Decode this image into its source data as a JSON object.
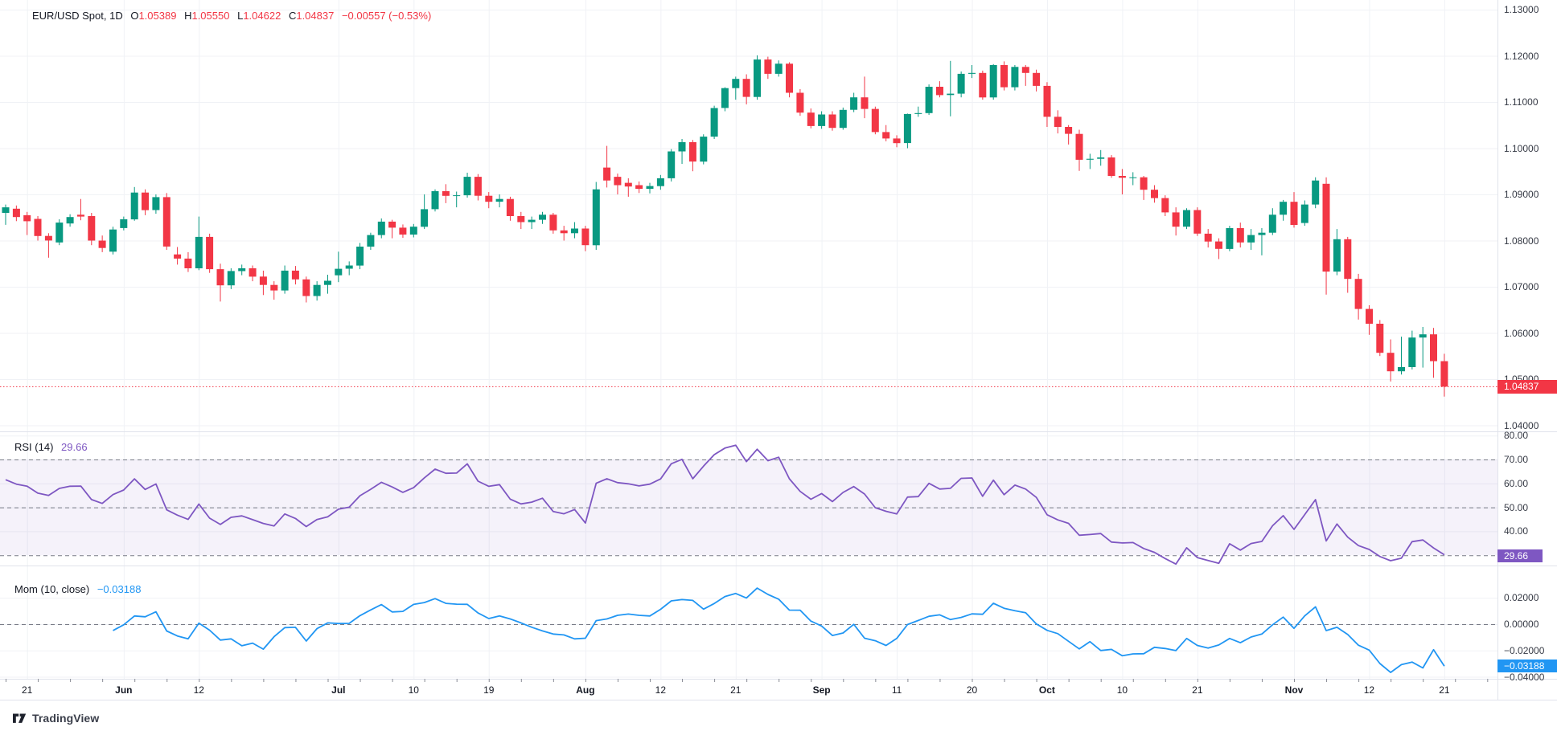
{
  "legend": {
    "symbol": "EUR/USD Spot, 1D",
    "o_key": "O",
    "o_val": "1.05389",
    "h_key": "H",
    "h_val": "1.05550",
    "l_key": "L",
    "l_val": "1.04622",
    "c_key": "C",
    "c_val": "1.04837",
    "change": "−0.00557 (−0.53%)"
  },
  "rsi_legend": {
    "name": "RSI",
    "params": "(14)",
    "value": "29.66"
  },
  "mom_legend": {
    "name": "Mom",
    "params": "(10, close)",
    "value": "−0.03188"
  },
  "badges": {
    "price": "1.04837",
    "rsi": "29.66",
    "mom": "−0.03188"
  },
  "logo": {
    "brand": "TradingView"
  },
  "colors": {
    "up": "#089981",
    "down": "#f23645",
    "rsi": "#7e57c2",
    "rsi_band_fill": "#7e57c2",
    "momentum": "#2196f3",
    "grid": "#f0f2f6",
    "separator": "#e0e3eb",
    "level_dash": "#787b86",
    "axis_text": "#363a45",
    "tick": "#8a8d96"
  },
  "chart_data": {
    "type": "candlestick",
    "title": "EUR/USD Spot, 1D",
    "symbol": "EUR/USD Spot",
    "interval": "1D",
    "last_price": 1.04837,
    "price_axis_labels": [
      {
        "label": "1.13000",
        "value": 1.13
      },
      {
        "label": "1.12000",
        "value": 1.12
      },
      {
        "label": "1.11000",
        "value": 1.11
      },
      {
        "label": "1.10000",
        "value": 1.1
      },
      {
        "label": "1.09000",
        "value": 1.09
      },
      {
        "label": "1.08000",
        "value": 1.08
      },
      {
        "label": "1.07000",
        "value": 1.07
      },
      {
        "label": "1.06000",
        "value": 1.06
      },
      {
        "label": "1.05000",
        "value": 1.05
      },
      {
        "label": "1.04000",
        "value": 1.04
      }
    ],
    "time_axis_labels": [
      {
        "label": "21",
        "index": 2
      },
      {
        "label": "Jun",
        "index": 11,
        "month": true
      },
      {
        "label": "12",
        "index": 18
      },
      {
        "label": "Jul",
        "index": 31,
        "month": true
      },
      {
        "label": "10",
        "index": 38
      },
      {
        "label": "19",
        "index": 45
      },
      {
        "label": "Aug",
        "index": 54,
        "month": true
      },
      {
        "label": "12",
        "index": 61
      },
      {
        "label": "21",
        "index": 68
      },
      {
        "label": "Sep",
        "index": 76,
        "month": true
      },
      {
        "label": "11",
        "index": 83
      },
      {
        "label": "20",
        "index": 90
      },
      {
        "label": "Oct",
        "index": 97,
        "month": true
      },
      {
        "label": "10",
        "index": 104
      },
      {
        "label": "21",
        "index": 111
      },
      {
        "label": "Nov",
        "index": 120,
        "month": true
      },
      {
        "label": "12",
        "index": 127
      },
      {
        "label": "21",
        "index": 134
      }
    ],
    "candles": [
      [
        1.086,
        1.0878,
        1.0834,
        1.0872
      ],
      [
        1.0869,
        1.0876,
        1.0842,
        1.0851
      ],
      [
        1.0855,
        1.0862,
        1.0812,
        1.0842
      ],
      [
        1.0847,
        1.0853,
        1.08,
        1.081
      ],
      [
        1.081,
        1.0816,
        1.0763,
        1.08
      ],
      [
        1.0796,
        1.0846,
        1.079,
        1.0839
      ],
      [
        1.0837,
        1.0857,
        1.083,
        1.0851
      ],
      [
        1.0856,
        1.089,
        1.0844,
        1.0852
      ],
      [
        1.0853,
        1.086,
        1.079,
        1.08
      ],
      [
        1.08,
        1.0811,
        1.0775,
        1.0784
      ],
      [
        1.0776,
        1.083,
        1.077,
        1.0824
      ],
      [
        1.0827,
        1.0852,
        1.0822,
        1.0846
      ],
      [
        1.0846,
        1.0916,
        1.0843,
        1.0904
      ],
      [
        1.0904,
        1.0911,
        1.0855,
        1.0866
      ],
      [
        1.0866,
        1.09,
        1.0858,
        1.0894
      ],
      [
        1.0894,
        1.0903,
        1.078,
        1.0787
      ],
      [
        1.077,
        1.0786,
        1.0748,
        1.0761
      ],
      [
        1.0761,
        1.0775,
        1.0732,
        1.074
      ],
      [
        1.074,
        1.0852,
        1.0736,
        1.0808
      ],
      [
        1.0808,
        1.0815,
        1.073,
        1.0738
      ],
      [
        1.0738,
        1.075,
        1.0668,
        1.0703
      ],
      [
        1.0703,
        1.074,
        1.0695,
        1.0734
      ],
      [
        1.0734,
        1.0748,
        1.0725,
        1.074
      ],
      [
        1.074,
        1.0746,
        1.0712,
        1.0722
      ],
      [
        1.0722,
        1.0735,
        1.0682,
        1.0704
      ],
      [
        1.0704,
        1.0712,
        1.0672,
        1.0692
      ],
      [
        1.0692,
        1.0746,
        1.0685,
        1.0735
      ],
      [
        1.0735,
        1.0745,
        1.0705,
        1.0716
      ],
      [
        1.0716,
        1.0722,
        1.0666,
        1.068
      ],
      [
        1.068,
        1.0712,
        1.067,
        1.0704
      ],
      [
        1.0704,
        1.0726,
        1.0685,
        1.0713
      ],
      [
        1.0725,
        1.0776,
        1.071,
        1.0739
      ],
      [
        1.0739,
        1.0755,
        1.0725,
        1.0746
      ],
      [
        1.0746,
        1.0795,
        1.0738,
        1.0787
      ],
      [
        1.0787,
        1.0817,
        1.078,
        1.0812
      ],
      [
        1.0812,
        1.0848,
        1.0805,
        1.0841
      ],
      [
        1.0841,
        1.0845,
        1.0805,
        1.0828
      ],
      [
        1.0828,
        1.0835,
        1.0806,
        1.0813
      ],
      [
        1.0813,
        1.0836,
        1.0807,
        1.083
      ],
      [
        1.083,
        1.09,
        1.0825,
        1.0868
      ],
      [
        1.0868,
        1.0911,
        1.0863,
        1.0907
      ],
      [
        1.0907,
        1.0922,
        1.0881,
        1.0897
      ],
      [
        1.0897,
        1.0906,
        1.0872,
        1.0898
      ],
      [
        1.0898,
        1.0947,
        1.0893,
        1.0938
      ],
      [
        1.0938,
        1.0944,
        1.0887,
        1.0897
      ],
      [
        1.0897,
        1.0905,
        1.087,
        1.0884
      ],
      [
        1.0884,
        1.09,
        1.0872,
        1.089
      ],
      [
        1.089,
        1.0895,
        1.0843,
        1.0853
      ],
      [
        1.0853,
        1.0862,
        1.0825,
        1.084
      ],
      [
        1.084,
        1.0852,
        1.0825,
        1.0845
      ],
      [
        1.0845,
        1.0862,
        1.0836,
        1.0856
      ],
      [
        1.0856,
        1.086,
        1.0815,
        1.0822
      ],
      [
        1.0822,
        1.0832,
        1.08,
        1.0816
      ],
      [
        1.0816,
        1.084,
        1.0805,
        1.0826
      ],
      [
        1.0826,
        1.0832,
        1.0777,
        1.079
      ],
      [
        1.079,
        1.0927,
        1.078,
        1.0911
      ],
      [
        1.0958,
        1.1005,
        1.0915,
        1.093
      ],
      [
        1.0938,
        1.0945,
        1.09,
        1.092
      ],
      [
        1.0925,
        1.0935,
        1.0895,
        1.0917
      ],
      [
        1.092,
        1.0928,
        1.0903,
        1.0912
      ],
      [
        1.0912,
        1.0925,
        1.0902,
        1.0918
      ],
      [
        1.0918,
        1.0942,
        1.091,
        1.0935
      ],
      [
        1.0935,
        1.0998,
        1.0928,
        1.0993
      ],
      [
        1.0993,
        1.102,
        1.0966,
        1.1013
      ],
      [
        1.1013,
        1.1018,
        1.095,
        1.0971
      ],
      [
        1.0971,
        1.103,
        1.0965,
        1.1025
      ],
      [
        1.1025,
        1.1092,
        1.102,
        1.1087
      ],
      [
        1.1087,
        1.1132,
        1.108,
        1.113
      ],
      [
        1.113,
        1.1155,
        1.1105,
        1.115
      ],
      [
        1.115,
        1.116,
        1.1095,
        1.1111
      ],
      [
        1.1111,
        1.1201,
        1.1105,
        1.1192
      ],
      [
        1.1192,
        1.1198,
        1.115,
        1.1161
      ],
      [
        1.1161,
        1.119,
        1.1155,
        1.1183
      ],
      [
        1.1183,
        1.1186,
        1.111,
        1.112
      ],
      [
        1.112,
        1.1128,
        1.107,
        1.1077
      ],
      [
        1.1077,
        1.1086,
        1.1043,
        1.1048
      ],
      [
        1.1048,
        1.108,
        1.1042,
        1.1073
      ],
      [
        1.1073,
        1.108,
        1.1038,
        1.1044
      ],
      [
        1.1044,
        1.1088,
        1.104,
        1.1083
      ],
      [
        1.1083,
        1.112,
        1.1078,
        1.111
      ],
      [
        1.111,
        1.1155,
        1.1065,
        1.1085
      ],
      [
        1.1085,
        1.109,
        1.103,
        1.1035
      ],
      [
        1.1035,
        1.105,
        1.1015,
        1.1021
      ],
      [
        1.1021,
        1.1028,
        1.1002,
        1.1011
      ],
      [
        1.1011,
        1.1075,
        1.1,
        1.1074
      ],
      [
        1.1074,
        1.109,
        1.1068,
        1.1076
      ],
      [
        1.1076,
        1.1138,
        1.1072,
        1.1133
      ],
      [
        1.1133,
        1.1145,
        1.111,
        1.1115
      ],
      [
        1.1115,
        1.1189,
        1.1069,
        1.1118
      ],
      [
        1.1118,
        1.1166,
        1.111,
        1.1161
      ],
      [
        1.1161,
        1.118,
        1.1152,
        1.1163
      ],
      [
        1.1163,
        1.1168,
        1.1105,
        1.111
      ],
      [
        1.111,
        1.1182,
        1.1105,
        1.118
      ],
      [
        1.118,
        1.1188,
        1.1125,
        1.1132
      ],
      [
        1.1132,
        1.118,
        1.1125,
        1.1176
      ],
      [
        1.1176,
        1.118,
        1.1135,
        1.1163
      ],
      [
        1.1163,
        1.117,
        1.1123,
        1.1135
      ],
      [
        1.1135,
        1.1143,
        1.1046,
        1.1068
      ],
      [
        1.1068,
        1.1082,
        1.1032,
        1.1046
      ],
      [
        1.1046,
        1.105,
        1.1008,
        1.1031
      ],
      [
        1.1031,
        1.104,
        1.0951,
        1.0975
      ],
      [
        1.0975,
        1.0988,
        1.0955,
        1.0977
      ],
      [
        1.0977,
        1.0996,
        1.0962,
        1.098
      ],
      [
        1.098,
        1.0985,
        1.0936,
        1.094
      ],
      [
        1.094,
        1.0955,
        1.09,
        1.0936
      ],
      [
        1.0936,
        1.0948,
        1.092,
        1.0937
      ],
      [
        1.0937,
        1.094,
        1.0888,
        1.091
      ],
      [
        1.091,
        1.092,
        1.0882,
        1.0892
      ],
      [
        1.0892,
        1.0898,
        1.0853,
        1.0861
      ],
      [
        1.0861,
        1.0872,
        1.0811,
        1.083
      ],
      [
        1.083,
        1.087,
        1.0825,
        1.0866
      ],
      [
        1.0866,
        1.0872,
        1.081,
        1.0815
      ],
      [
        1.0815,
        1.0825,
        1.0785,
        1.0798
      ],
      [
        1.0798,
        1.0805,
        1.076,
        1.0782
      ],
      [
        1.0782,
        1.0832,
        1.0777,
        1.0827
      ],
      [
        1.0827,
        1.0839,
        1.0785,
        1.0796
      ],
      [
        1.0796,
        1.0825,
        1.078,
        1.0812
      ],
      [
        1.0812,
        1.0827,
        1.0768,
        1.0817
      ],
      [
        1.0817,
        1.087,
        1.0812,
        1.0856
      ],
      [
        1.0856,
        1.0888,
        1.0843,
        1.0884
      ],
      [
        1.0884,
        1.0905,
        1.0828,
        1.0834
      ],
      [
        1.0838,
        1.0887,
        1.0832,
        1.0878
      ],
      [
        1.0878,
        1.0937,
        1.087,
        1.093
      ],
      [
        1.0923,
        1.0937,
        1.0683,
        1.0733
      ],
      [
        1.0733,
        1.0825,
        1.0725,
        1.0803
      ],
      [
        1.0803,
        1.0808,
        1.0687,
        1.0717
      ],
      [
        1.0717,
        1.0728,
        1.0629,
        1.0652
      ],
      [
        1.0652,
        1.066,
        1.0596,
        1.062
      ],
      [
        1.062,
        1.0628,
        1.055,
        1.0557
      ],
      [
        1.0557,
        1.0586,
        1.0495,
        1.0517
      ],
      [
        1.0517,
        1.0592,
        1.051,
        1.0526
      ],
      [
        1.0526,
        1.0605,
        1.0521,
        1.059
      ],
      [
        1.059,
        1.0613,
        1.0525,
        1.0597
      ],
      [
        1.0597,
        1.0611,
        1.0503,
        1.0539
      ],
      [
        1.05389,
        1.0555,
        1.04622,
        1.04837
      ]
    ],
    "indicators": {
      "rsi": {
        "name": "RSI",
        "period": 14,
        "last_value": 29.66,
        "band": [
          30,
          70
        ],
        "levels": [
          70,
          50,
          30
        ],
        "axis_labels": [
          {
            "label": "80.00",
            "value": 80
          },
          {
            "label": "70.00",
            "value": 70
          },
          {
            "label": "60.00",
            "value": 60
          },
          {
            "label": "50.00",
            "value": 50
          },
          {
            "label": "40.00",
            "value": 40
          }
        ]
      },
      "momentum": {
        "name": "Mom",
        "period": 10,
        "source": "close",
        "last_value": -0.03188,
        "zero_line": 0,
        "axis_labels": [
          {
            "label": "0.02000",
            "value": 0.02
          },
          {
            "label": "0.00000",
            "value": 0
          },
          {
            "label": "−0.02000",
            "value": -0.02
          },
          {
            "label": "−0.04000",
            "value": -0.04
          }
        ]
      }
    },
    "layout_hints": {
      "grid": true,
      "price_range_shown": [
        1.04,
        1.13
      ],
      "rsi_range_shown": [
        25,
        81
      ],
      "momentum_range_shown": [
        -0.045,
        0.045
      ]
    }
  }
}
